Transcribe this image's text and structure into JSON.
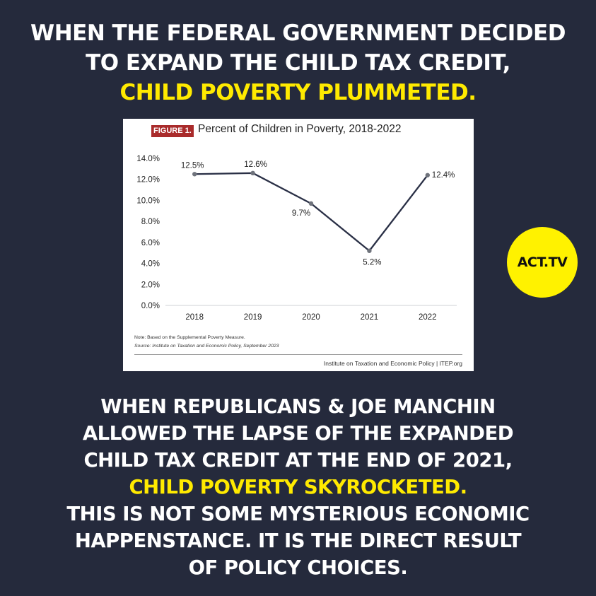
{
  "headline_top": {
    "line1": "WHEN THE FEDERAL GOVERNMENT DECIDED",
    "line2": "TO EXPAND THE CHILD TAX CREDIT,",
    "highlight": "CHILD POVERTY PLUMMETED."
  },
  "headline_bottom": {
    "line1": "WHEN REPUBLICANS & JOE MANCHIN",
    "line2": "ALLOWED THE LAPSE OF THE EXPANDED",
    "line3": "CHILD TAX CREDIT AT THE END OF 2021,",
    "highlight": "CHILD POVERTY SKYROCKETED.",
    "line4": "THIS IS NOT SOME MYSTERIOUS ECONOMIC",
    "line5": "HAPPENSTANCE. IT IS THE DIRECT RESULT",
    "line6": "OF POLICY CHOICES."
  },
  "logo": {
    "text": "ACT.TV"
  },
  "colors": {
    "background": "#252a3c",
    "highlight": "#ffea00",
    "logo_bg": "#fff200",
    "line": "#2a3046",
    "marker": "#6f737c",
    "badge": "#a92b2b"
  },
  "chart_data": {
    "type": "line",
    "figure_label": "FIGURE 1.",
    "title": "Percent of Children in Poverty, 2018-2022",
    "categories": [
      "2018",
      "2019",
      "2020",
      "2021",
      "2022"
    ],
    "values": [
      12.5,
      12.6,
      9.7,
      5.2,
      12.4
    ],
    "data_labels": [
      "12.5%",
      "12.6%",
      "9.7%",
      "5.2%",
      "12.4%"
    ],
    "ylim": [
      0,
      14
    ],
    "yticks": [
      "0.0%",
      "2.0%",
      "4.0%",
      "6.0%",
      "8.0%",
      "10.0%",
      "12.0%",
      "14.0%"
    ],
    "grid": false,
    "note": "Note: Based on the Supplemental Poverty Measure.",
    "source": "Source: Institute on Taxation and Economic Policy, September 2023",
    "footer": "Institute on Taxation and Economic Policy | ITEP.org"
  }
}
